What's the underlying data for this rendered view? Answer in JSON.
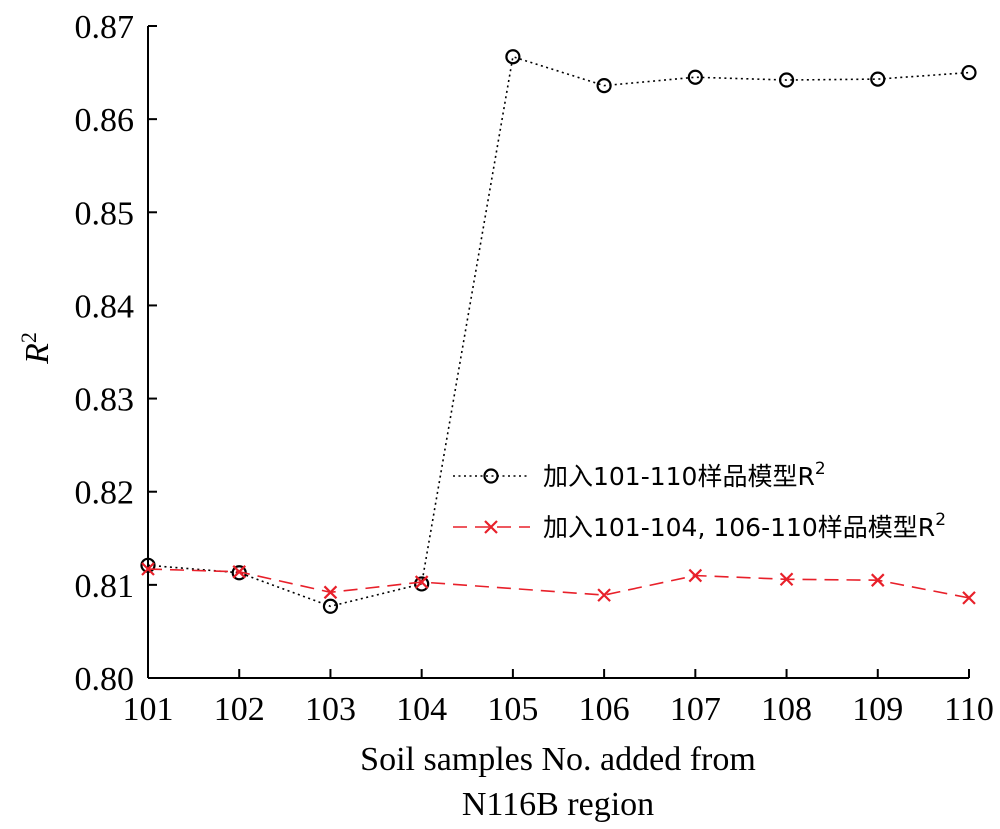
{
  "chart_data": {
    "type": "line",
    "x": [
      101,
      102,
      103,
      104,
      105,
      106,
      107,
      108,
      109,
      110
    ],
    "x_tick_labels": [
      "101",
      "102",
      "103",
      "104",
      "105",
      "106",
      "107",
      "108",
      "109",
      "110"
    ],
    "xlabel_line1": "Soil samples No. added from",
    "xlabel_line2": "N116B region",
    "ylabel_base": "R",
    "ylabel_sup": "2",
    "ylim": [
      0.8,
      0.87
    ],
    "y_ticks": [
      0.8,
      0.81,
      0.82,
      0.83,
      0.84,
      0.85,
      0.86,
      0.87
    ],
    "y_tick_labels": [
      "0.80",
      "0.81",
      "0.82",
      "0.83",
      "0.84",
      "0.85",
      "0.86",
      "0.87"
    ],
    "grid": false,
    "legend_position": "center-right",
    "series": [
      {
        "name_base": "加入101-110样品模型R",
        "name_sup": "2",
        "color": "#000000",
        "marker": "circle",
        "line_style": "dotted",
        "values": [
          0.8121,
          0.8113,
          0.8077,
          0.8101,
          0.8667,
          0.8636,
          0.8645,
          0.8642,
          0.8643,
          0.865
        ]
      },
      {
        "name_base": "加入101-104, 106-110样品模型R",
        "name_sup": "2",
        "color": "#e8202a",
        "marker": "x",
        "line_style": "dashed",
        "x": [
          101,
          102,
          103,
          104,
          106,
          107,
          108,
          109,
          110
        ],
        "values": [
          0.8117,
          0.8114,
          0.8092,
          0.8103,
          0.8089,
          0.811,
          0.8106,
          0.8105,
          0.8086
        ]
      }
    ]
  }
}
